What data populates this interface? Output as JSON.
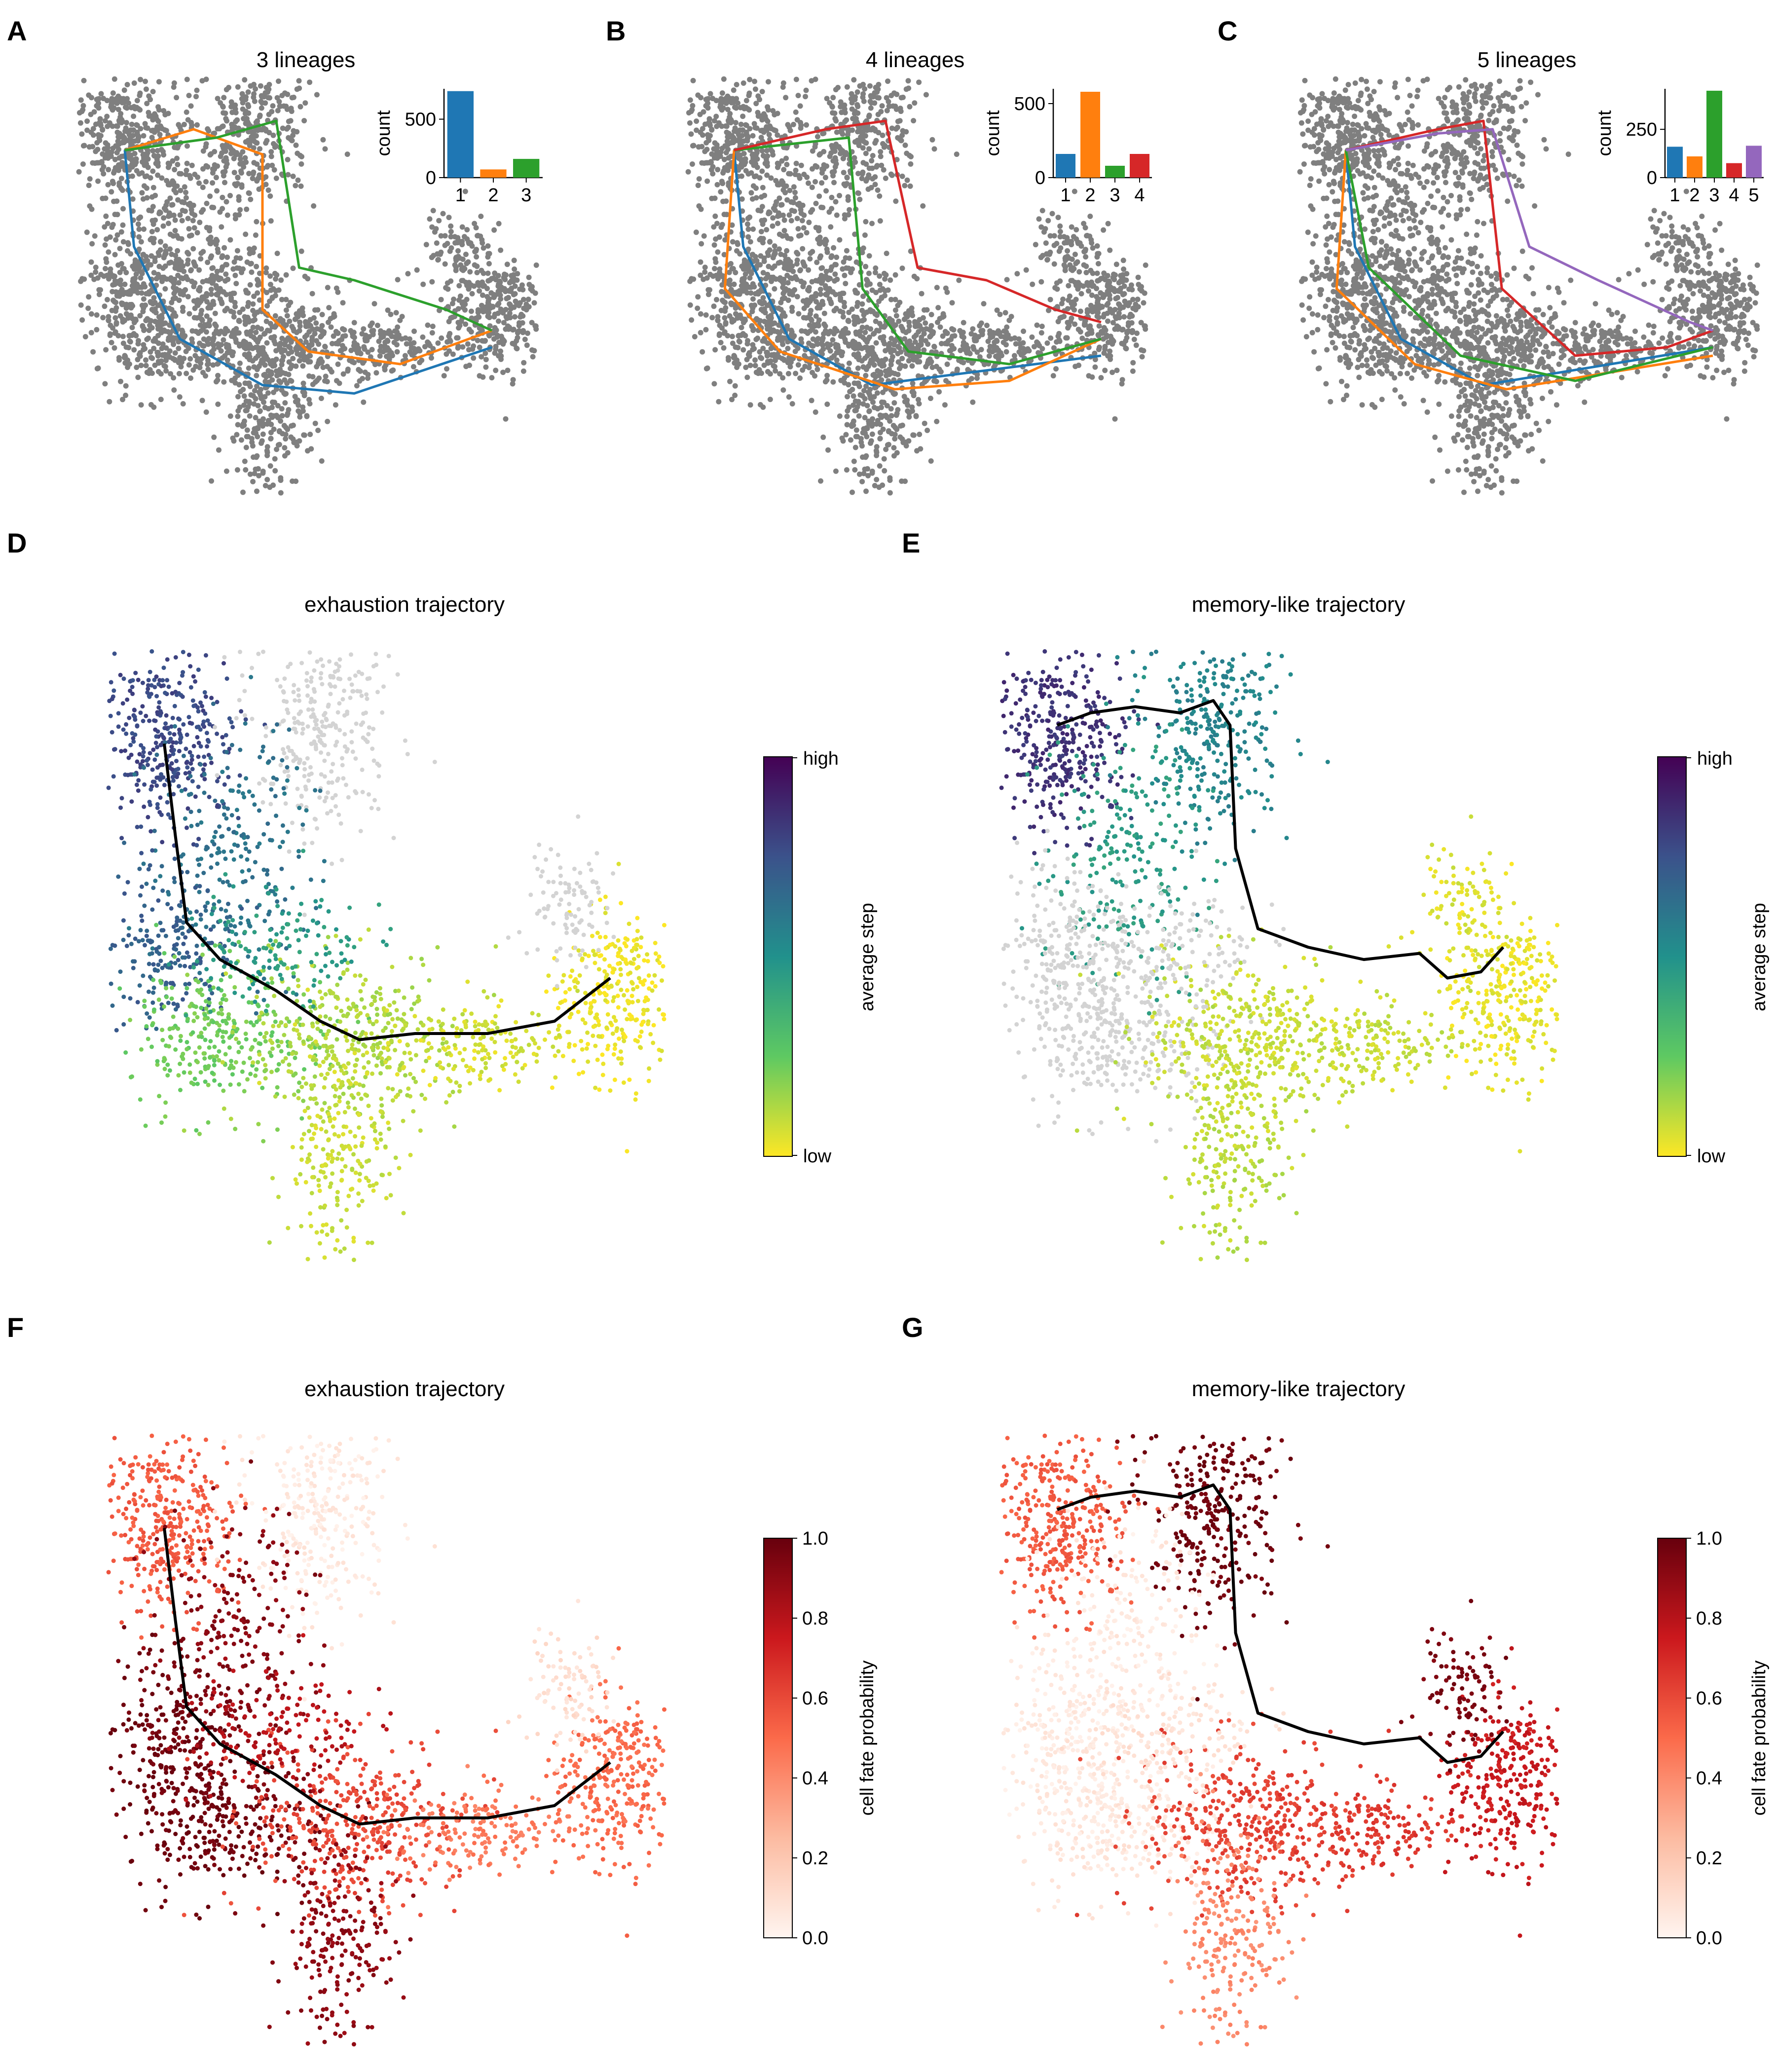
{
  "panels": [
    {
      "label": "A",
      "title": "3 lineages"
    },
    {
      "label": "B",
      "title": "4 lineages"
    },
    {
      "label": "C",
      "title": "5 lineages"
    },
    {
      "label": "D",
      "title": "exhaustion trajectory"
    },
    {
      "label": "E",
      "title": "memory-like trajectory"
    },
    {
      "label": "F",
      "title": "exhaustion trajectory"
    },
    {
      "label": "G",
      "title": "memory-like trajectory"
    }
  ],
  "colorbars": {
    "step": {
      "label": "average step",
      "top_label": "high",
      "bottom_label": "low",
      "colormap": "viridis"
    },
    "fate": {
      "label": "cell fate probability",
      "ticks": [
        "0.0",
        "0.2",
        "0.4",
        "0.6",
        "0.8",
        "1.0"
      ],
      "colormap": "Reds"
    }
  },
  "lineage_colors": [
    "#1f77b4",
    "#ff7f0e",
    "#2ca02c",
    "#d62728",
    "#9467bd"
  ],
  "chart_data": [
    {
      "type": "bar",
      "panel": "A",
      "inset": true,
      "ylabel": "count",
      "categories": [
        "1",
        "2",
        "3"
      ],
      "values": [
        740,
        70,
        160
      ],
      "ylim": [
        0,
        760
      ],
      "yticks": [
        "0",
        "500"
      ],
      "yticks_values": [
        0,
        500
      ]
    },
    {
      "type": "bar",
      "panel": "B",
      "inset": true,
      "ylabel": "count",
      "categories": [
        "1",
        "2",
        "3",
        "4"
      ],
      "values": [
        160,
        580,
        80,
        160
      ],
      "ylim": [
        0,
        600
      ],
      "yticks": [
        "0",
        "500"
      ],
      "yticks_values": [
        0,
        500
      ]
    },
    {
      "type": "bar",
      "panel": "C",
      "inset": true,
      "ylabel": "count",
      "categories": [
        "1",
        "2",
        "3",
        "4",
        "5"
      ],
      "values": [
        160,
        110,
        450,
        75,
        165
      ],
      "ylim": [
        0,
        460
      ],
      "yticks": [
        "0",
        "250"
      ],
      "yticks_values": [
        0,
        250
      ]
    },
    {
      "type": "scatter",
      "panel": "D",
      "colorbar": "average step",
      "trajectory": "exhaustion"
    },
    {
      "type": "scatter",
      "panel": "E",
      "colorbar": "average step",
      "trajectory": "memory-like"
    },
    {
      "type": "scatter",
      "panel": "F",
      "colorbar": "cell fate probability",
      "trajectory": "exhaustion"
    },
    {
      "type": "scatter",
      "panel": "G",
      "colorbar": "cell fate probability",
      "trajectory": "memory-like"
    }
  ]
}
